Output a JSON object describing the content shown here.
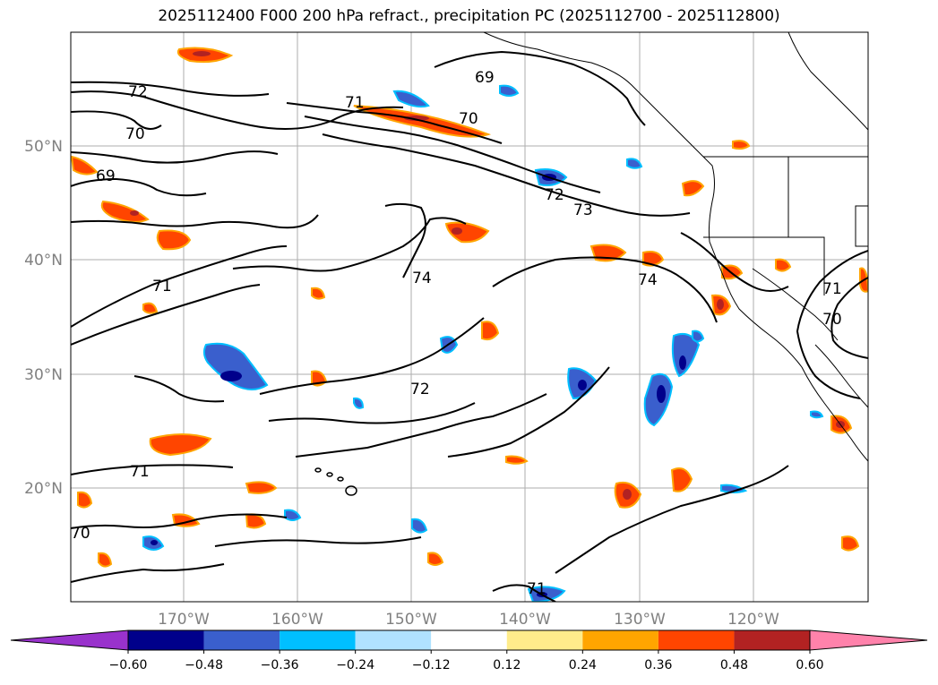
{
  "title": "2025112400 F000 200 hPa refract., precipitation PC (2025112700 - 2025112800)",
  "longitude_labels": [
    "170°W",
    "160°W",
    "150°W",
    "140°W",
    "130°W",
    "120°W"
  ],
  "latitude_labels": [
    "50°N",
    "40°N",
    "30°N",
    "20°N"
  ],
  "colorbar": {
    "ticks": [
      "−0.60",
      "−0.48",
      "−0.36",
      "−0.24",
      "−0.12",
      "0.12",
      "0.24",
      "0.36",
      "0.48",
      "0.60"
    ],
    "colors": [
      "#9932cc",
      "#00008b",
      "#3a5fcd",
      "#00bfff",
      "#b0e2ff",
      "#ffffff",
      "#ffec8b",
      "#ffa500",
      "#ff4500",
      "#b22222",
      "#ff82ab"
    ]
  },
  "contour_labels": [
    "72",
    "70",
    "69",
    "71",
    "70",
    "69",
    "72",
    "73",
    "74",
    "74",
    "71",
    "72",
    "71",
    "70",
    "71",
    "70",
    "71"
  ],
  "colors": {
    "positive_fill": "#ff4500",
    "positive_edge": "#ffa500",
    "negative_fill": "#3a5fcd",
    "negative_edge": "#00bfff",
    "strong_negative": "#00008b",
    "strong_positive": "#b22222",
    "grid": "#999999",
    "contour": "#000000",
    "coast": "#000000",
    "axis_label": "#808080"
  }
}
